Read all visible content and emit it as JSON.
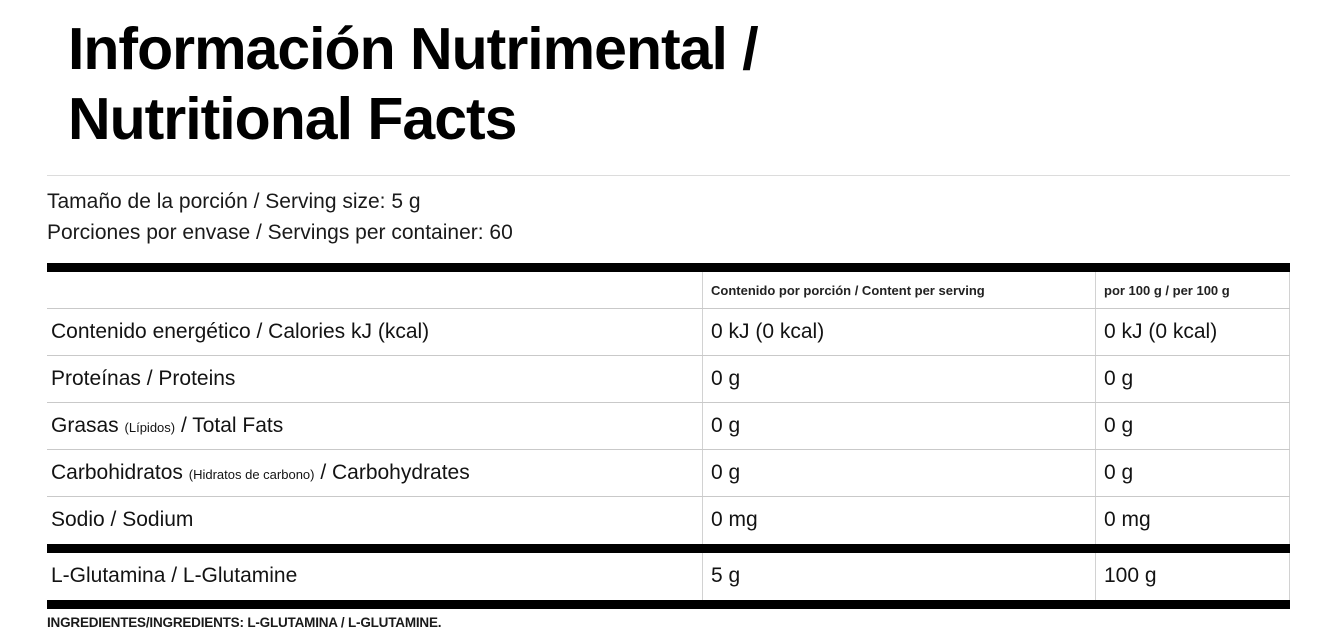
{
  "title": {
    "line1": "Información Nutrimental /",
    "line2": "Nutritional Facts"
  },
  "serving_info": {
    "serving_size": "Tamaño de la porción / Serving size: 5 g",
    "servings_per_container": "Porciones por envase / Servings per container: 60"
  },
  "table": {
    "column_headers": {
      "per_serving": "Contenido por porción / Content per serving",
      "per_100g": "por 100 g / per 100 g"
    },
    "rows": [
      {
        "label_pre": "Contenido energético / Calories kJ (kcal)",
        "label_small": "",
        "label_post": "",
        "per_serving": "0 kJ (0 kcal)",
        "per_100g": "0 kJ (0 kcal)"
      },
      {
        "label_pre": "Proteínas / Proteins",
        "label_small": "",
        "label_post": "",
        "per_serving": "0 g",
        "per_100g": "0 g"
      },
      {
        "label_pre": "Grasas ",
        "label_small": "(Lípidos)",
        "label_post": " / Total Fats",
        "per_serving": "0 g",
        "per_100g": "0 g"
      },
      {
        "label_pre": "Carbohidratos ",
        "label_small": "(Hidratos de carbono)",
        "label_post": " / Carbohydrates",
        "per_serving": "0 g",
        "per_100g": "0 g"
      },
      {
        "label_pre": "Sodio / Sodium",
        "label_small": "",
        "label_post": "",
        "per_serving": "0 mg",
        "per_100g": "0 mg"
      },
      {
        "label_pre": "L-Glutamina / L-Glutamine",
        "label_small": "",
        "label_post": "",
        "per_serving": "5 g",
        "per_100g": "100 g"
      }
    ]
  },
  "ingredients": "INGREDIENTES/INGREDIENTS: L-GLUTAMINA / L-GLUTAMINE.",
  "colors": {
    "text": "#131313",
    "thick_rule": "#000000",
    "thin_rule": "#c9c9c9",
    "column_rule": "#d2d2d2"
  }
}
